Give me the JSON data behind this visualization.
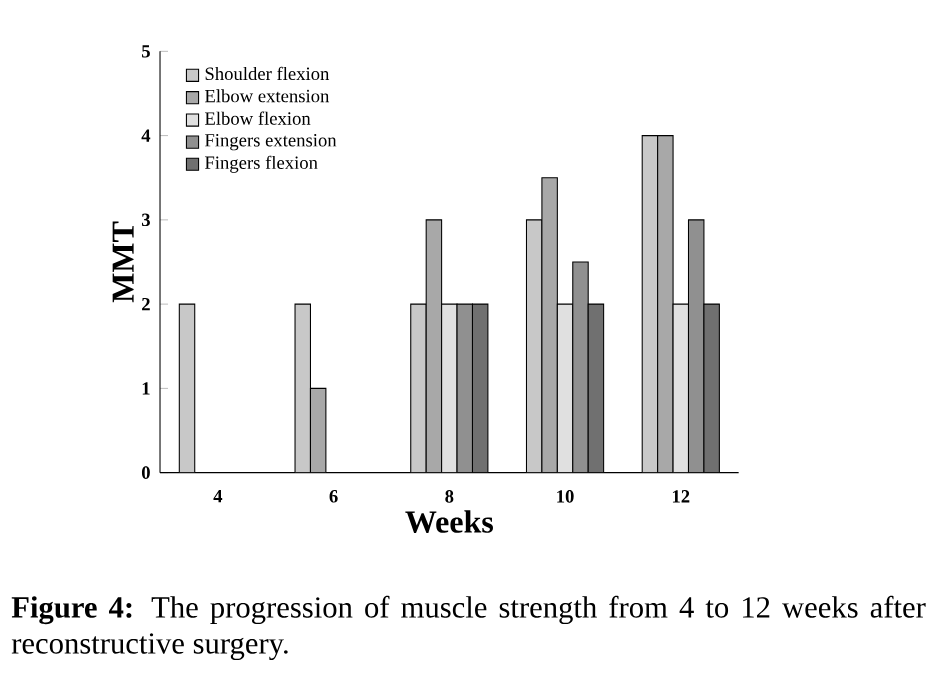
{
  "chart_data": {
    "type": "bar",
    "xlabel": "Weeks",
    "ylabel": "MMT",
    "categories": [
      "4",
      "6",
      "8",
      "10",
      "12"
    ],
    "series": [
      {
        "name": "Shoulder flexion",
        "color": "#c8c8c8",
        "values": [
          2,
          2,
          2,
          3,
          4
        ]
      },
      {
        "name": "Elbow extension",
        "color": "#a8a8a8",
        "values": [
          null,
          1,
          3,
          3.5,
          4
        ]
      },
      {
        "name": "Elbow flexion",
        "color": "#e0e0e0",
        "values": [
          null,
          null,
          2,
          2,
          2
        ]
      },
      {
        "name": "Fingers extension",
        "color": "#909090",
        "values": [
          null,
          null,
          2,
          2.5,
          3
        ]
      },
      {
        "name": "Fingers flexion",
        "color": "#707070",
        "values": [
          null,
          null,
          2,
          2,
          2
        ]
      }
    ],
    "ylim": [
      0,
      5
    ],
    "yticks": [
      0,
      1,
      2,
      3,
      4,
      5
    ],
    "grid": false,
    "legend": "top left",
    "annotations": [
      "**Figure 4:** The progression of muscle strength from 4 to 12 weeks after reconstructive surgery."
    ]
  }
}
